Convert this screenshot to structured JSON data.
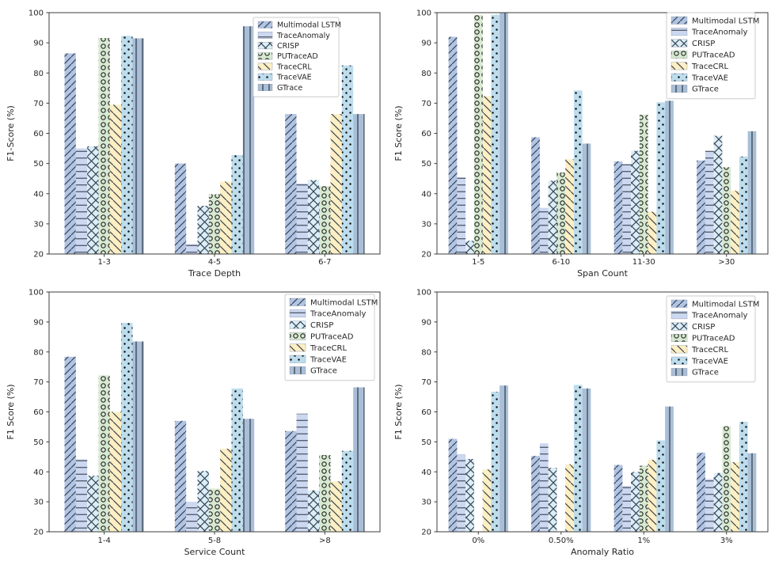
{
  "figure": {
    "background": "#ffffff",
    "hatch_color": "#39414f",
    "axis_color": "#3c3c3c",
    "text_color": "#262626",
    "legend_border_color": "#cccccc"
  },
  "series_styles": [
    {
      "name": "Multimodal LSTM",
      "color": "#b0c4e4",
      "hatch": "/"
    },
    {
      "name": "TraceAnomaly",
      "color": "#ccd7f0",
      "hatch": "-"
    },
    {
      "name": "CRISP",
      "color": "#daeef8",
      "hatch": "x"
    },
    {
      "name": "PUTraceAD",
      "color": "#d7e9d1",
      "hatch": "o"
    },
    {
      "name": "TraceCRL",
      "color": "#fdefc3",
      "hatch": "\\"
    },
    {
      "name": "TraceVAE",
      "color": "#bddded",
      "hatch": "."
    },
    {
      "name": "GTrace",
      "color": "#a9bfd7",
      "hatch": "|"
    }
  ],
  "chart_data": [
    {
      "type": "bar",
      "position": "top-left",
      "xlabel": "Trace Depth",
      "ylabel": "F1-Score (%)",
      "ylim": [
        20,
        100
      ],
      "yticks": [
        20,
        30,
        40,
        50,
        60,
        70,
        80,
        90,
        100
      ],
      "grid": false,
      "legend_position": "upper right",
      "categories": [
        "1-3",
        "4-5",
        "6-7"
      ],
      "series": [
        {
          "name": "Multimodal LSTM",
          "values": [
            86.5,
            50.0,
            66.4
          ]
        },
        {
          "name": "TraceAnomaly",
          "values": [
            55.0,
            23.3,
            43.4
          ]
        },
        {
          "name": "CRISP",
          "values": [
            55.7,
            36.0,
            44.5
          ]
        },
        {
          "name": "PUTraceAD",
          "values": [
            91.6,
            39.8,
            42.5
          ]
        },
        {
          "name": "TraceCRL",
          "values": [
            69.5,
            44.0,
            66.4
          ]
        },
        {
          "name": "TraceVAE",
          "values": [
            92.3,
            52.8,
            82.5
          ]
        },
        {
          "name": "GTrace",
          "values": [
            91.5,
            95.5,
            66.4
          ]
        }
      ]
    },
    {
      "type": "bar",
      "position": "top-right",
      "xlabel": "Span Count",
      "ylabel": "F1 Score (%)",
      "ylim": [
        20,
        100
      ],
      "yticks": [
        20,
        30,
        40,
        50,
        60,
        70,
        80,
        90,
        100
      ],
      "grid": false,
      "legend_position": "upper right",
      "categories": [
        "1-5",
        "6-10",
        "11-30",
        ">30"
      ],
      "series": [
        {
          "name": "Multimodal LSTM",
          "values": [
            92.0,
            58.7,
            50.7,
            51.0
          ]
        },
        {
          "name": "TraceAnomaly",
          "values": [
            45.4,
            35.3,
            49.8,
            54.2
          ]
        },
        {
          "name": "CRISP",
          "values": [
            24.4,
            44.3,
            54.2,
            59.2
          ]
        },
        {
          "name": "PUTraceAD",
          "values": [
            99.3,
            47.0,
            66.2,
            48.8
          ]
        },
        {
          "name": "TraceCRL",
          "values": [
            72.3,
            51.4,
            34.0,
            41.0
          ]
        },
        {
          "name": "TraceVAE",
          "values": [
            99.3,
            74.2,
            70.3,
            52.3
          ]
        },
        {
          "name": "GTrace",
          "values": [
            100.0,
            56.6,
            70.8,
            60.7
          ]
        }
      ]
    },
    {
      "type": "bar",
      "position": "bottom-left",
      "xlabel": "Service Count",
      "ylabel": "F1 Score (%)",
      "ylim": [
        20,
        100
      ],
      "yticks": [
        20,
        30,
        40,
        50,
        60,
        70,
        80,
        90,
        100
      ],
      "grid": false,
      "legend_position": "upper right",
      "categories": [
        "1-4",
        "5-8",
        ">8"
      ],
      "series": [
        {
          "name": "Multimodal LSTM",
          "values": [
            78.4,
            57.0,
            53.6
          ]
        },
        {
          "name": "TraceAnomaly",
          "values": [
            44.2,
            30.0,
            59.4
          ]
        },
        {
          "name": "CRISP",
          "values": [
            38.7,
            40.3,
            33.8
          ]
        },
        {
          "name": "PUTraceAD",
          "values": [
            72.2,
            34.4,
            45.6
          ]
        },
        {
          "name": "TraceCRL",
          "values": [
            60.0,
            47.7,
            36.8
          ]
        },
        {
          "name": "TraceVAE",
          "values": [
            89.7,
            67.8,
            47.0
          ]
        },
        {
          "name": "GTrace",
          "values": [
            83.5,
            57.7,
            68.2
          ]
        }
      ]
    },
    {
      "type": "bar",
      "position": "bottom-right",
      "xlabel": "Anomaly Ratio",
      "ylabel": "F1 Score (%)",
      "ylim": [
        20,
        100
      ],
      "yticks": [
        20,
        30,
        40,
        50,
        60,
        70,
        80,
        90,
        100
      ],
      "grid": false,
      "legend_position": "upper right",
      "categories": [
        "0%",
        "0.50%",
        "1%",
        "3%"
      ],
      "series": [
        {
          "name": "Multimodal LSTM",
          "values": [
            51.0,
            45.3,
            42.3,
            46.4
          ]
        },
        {
          "name": "TraceAnomaly",
          "values": [
            45.8,
            49.5,
            35.3,
            37.6
          ]
        },
        {
          "name": "CRISP",
          "values": [
            44.3,
            41.3,
            40.0,
            39.6
          ]
        },
        {
          "name": "PUTraceAD",
          "values": [
            null,
            null,
            42.0,
            55.2
          ]
        },
        {
          "name": "TraceCRL",
          "values": [
            40.8,
            42.5,
            44.0,
            43.2
          ]
        },
        {
          "name": "TraceVAE",
          "values": [
            66.7,
            69.0,
            50.5,
            56.7
          ]
        },
        {
          "name": "GTrace",
          "values": [
            68.8,
            67.8,
            61.8,
            46.2
          ]
        }
      ]
    }
  ]
}
